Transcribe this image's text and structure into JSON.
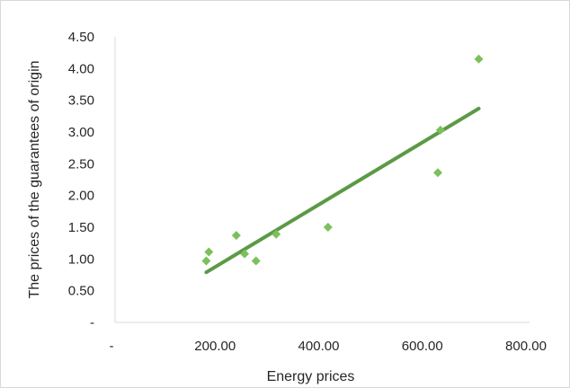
{
  "chart_data": {
    "type": "scatter",
    "xlabel": "Energy prices",
    "ylabel": "The prices of the guarantees of origin",
    "xlim": [
      0,
      800
    ],
    "ylim": [
      0,
      4.5
    ],
    "x_ticks": [
      {
        "value": 0,
        "label": "-"
      },
      {
        "value": 200,
        "label": "200.00"
      },
      {
        "value": 400,
        "label": "400.00"
      },
      {
        "value": 600,
        "label": "600.00"
      },
      {
        "value": 800,
        "label": "800.00"
      }
    ],
    "y_ticks": [
      {
        "value": 0,
        "label": "-"
      },
      {
        "value": 0.5,
        "label": "0.50"
      },
      {
        "value": 1.0,
        "label": "1.00"
      },
      {
        "value": 1.5,
        "label": "1.50"
      },
      {
        "value": 2.0,
        "label": "2.00"
      },
      {
        "value": 2.5,
        "label": "2.50"
      },
      {
        "value": 3.0,
        "label": "3.00"
      },
      {
        "value": 3.5,
        "label": "3.50"
      },
      {
        "value": 4.0,
        "label": "4.00"
      },
      {
        "value": 4.5,
        "label": "4.50"
      }
    ],
    "grid": {
      "x": false,
      "y": false
    },
    "series": [
      {
        "marker": "diamond",
        "color": "#7cc05c",
        "points": [
          {
            "x": 176,
            "y": 0.97
          },
          {
            "x": 181,
            "y": 1.11
          },
          {
            "x": 234,
            "y": 1.37
          },
          {
            "x": 250,
            "y": 1.08
          },
          {
            "x": 272,
            "y": 0.97
          },
          {
            "x": 311,
            "y": 1.39
          },
          {
            "x": 411,
            "y": 1.5
          },
          {
            "x": 623,
            "y": 2.36
          },
          {
            "x": 628,
            "y": 3.03
          },
          {
            "x": 702,
            "y": 4.15
          }
        ]
      }
    ],
    "trendline": {
      "type": "linear",
      "color": "#5b9a45",
      "from": {
        "x": 176,
        "y": 0.79
      },
      "to": {
        "x": 702,
        "y": 3.37
      }
    },
    "colors": {
      "axis": "#d9d9d9",
      "text": "#262626"
    }
  }
}
